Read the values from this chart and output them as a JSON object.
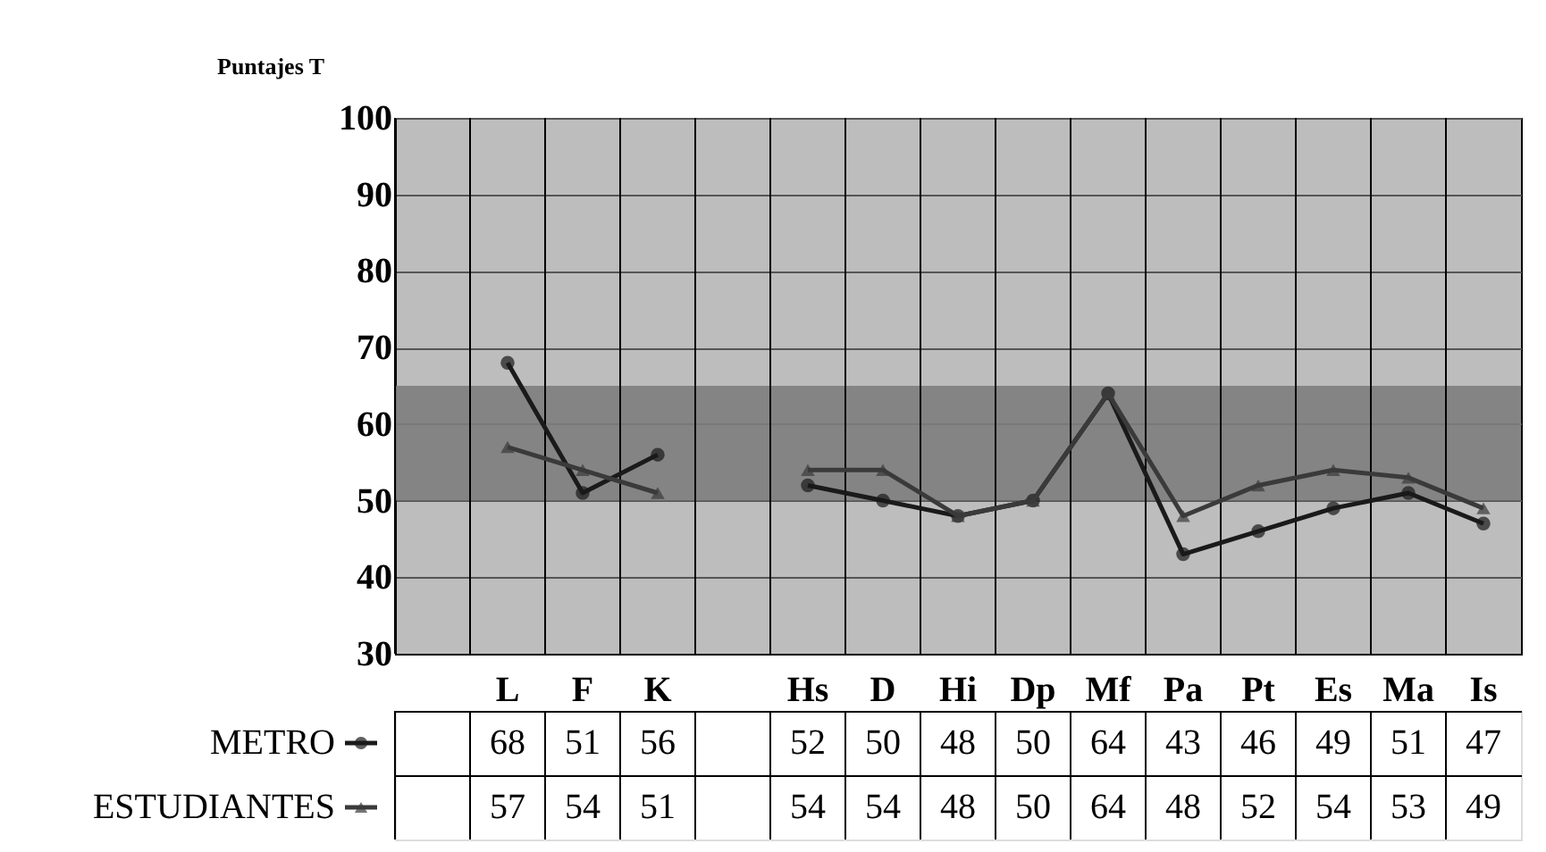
{
  "chart_data": {
    "type": "line",
    "ylabel": "Puntajes T",
    "categories": [
      null,
      "L",
      "F",
      "K",
      null,
      "Hs",
      "D",
      "Hi",
      "Dp",
      "Mf",
      "Pa",
      "Pt",
      "Es",
      "Ma",
      "Is"
    ],
    "series": [
      {
        "name": "METRO",
        "color": "#1a1a1a",
        "marker": "circle",
        "values": [
          null,
          68,
          51,
          56,
          null,
          52,
          50,
          48,
          50,
          64,
          43,
          46,
          49,
          51,
          47
        ]
      },
      {
        "name": "ESTUDIANTES",
        "color": "#3a3a3a",
        "marker": "triangle",
        "values": [
          null,
          57,
          54,
          51,
          null,
          54,
          54,
          48,
          50,
          64,
          48,
          52,
          54,
          53,
          49
        ]
      }
    ],
    "ylim": [
      30,
      100
    ],
    "yticks": [
      30,
      40,
      50,
      60,
      70,
      80,
      90,
      100
    ],
    "grid": true,
    "bands": [
      {
        "axis": "y",
        "from": 50,
        "to": 65,
        "color": "#7d7d7d"
      }
    ],
    "data_labels": true,
    "legend": "bottom"
  }
}
